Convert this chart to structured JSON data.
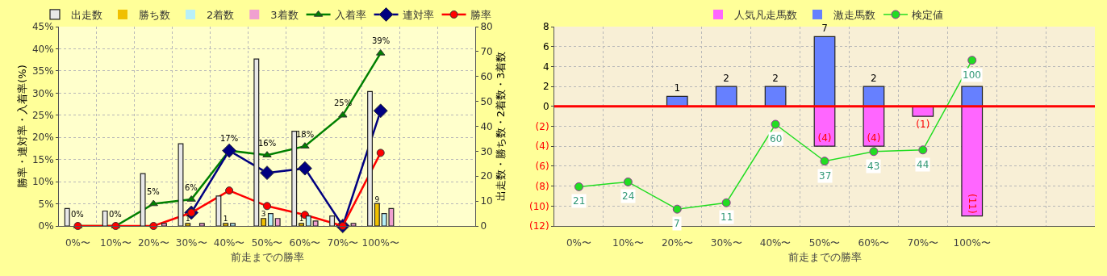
{
  "chart_data": [
    {
      "type": "bar",
      "xlabel": "前走までの勝率",
      "ylabel": "勝率・連対率・入着率(%)",
      "y2label": "出走数・勝ち数・2着数・3着数",
      "categories": [
        "0%〜",
        "10%〜",
        "20%〜",
        "30%〜",
        "40%〜",
        "50%〜",
        "60%〜",
        "70%〜",
        "100%〜",
        null,
        null
      ],
      "series": [
        {
          "name": "出走数",
          "axis": "y2",
          "color": "#e8e8e8",
          "values": [
            7,
            6,
            21,
            33,
            12,
            67,
            38,
            4,
            54,
            null,
            null
          ]
        },
        {
          "name": "勝ち数",
          "axis": "y2",
          "color": "#f0c000",
          "values": [
            0,
            0,
            0,
            1,
            1,
            3,
            1,
            0,
            9,
            null,
            null
          ],
          "value_labels": [
            null,
            null,
            null,
            "1",
            "1",
            "3",
            "1",
            null,
            "9",
            null,
            null
          ]
        },
        {
          "name": "2着数",
          "axis": "y2",
          "color": "#b8f0f8",
          "values": [
            0,
            0,
            0,
            0,
            1,
            5,
            4,
            0,
            5,
            null,
            null
          ]
        },
        {
          "name": "3着数",
          "axis": "y2",
          "color": "#f0a0d0",
          "values": [
            0,
            0,
            1,
            1,
            0,
            3,
            2,
            1,
            7,
            null,
            null
          ]
        },
        {
          "name": "入着率",
          "type": "line",
          "axis": "y",
          "marker": "triangle",
          "color": "#008000",
          "values": [
            0,
            0,
            5,
            6,
            17,
            16,
            18,
            25,
            39,
            null,
            null
          ],
          "value_labels": [
            "0%",
            "0%",
            "5%",
            "6%",
            "17%",
            "16%",
            "18%",
            "25%",
            "39%",
            null,
            null
          ]
        },
        {
          "name": "連対率",
          "type": "line",
          "axis": "y",
          "marker": "diamond",
          "color": "#000080",
          "values": [
            null,
            null,
            null,
            3,
            17,
            12,
            13,
            0,
            26,
            null,
            null
          ]
        },
        {
          "name": "勝率",
          "type": "line",
          "axis": "y",
          "marker": "circle",
          "color": "#ff0000",
          "values": [
            0,
            0,
            0,
            3,
            8,
            4.5,
            2.5,
            0,
            16.5,
            null,
            null
          ]
        }
      ],
      "ylim": [
        0,
        45
      ],
      "yticks": [
        {
          "value": 0,
          "label": "0%"
        },
        {
          "value": 5,
          "label": "5%"
        },
        {
          "value": 10,
          "label": "10%"
        },
        {
          "value": 15,
          "label": "15%"
        },
        {
          "value": 20,
          "label": "20%"
        },
        {
          "value": 25,
          "label": "25%"
        },
        {
          "value": 30,
          "label": "30%"
        },
        {
          "value": 35,
          "label": "35%"
        },
        {
          "value": 40,
          "label": "40%"
        },
        {
          "value": 45,
          "label": "45%"
        }
      ],
      "y2lim": [
        0,
        80
      ],
      "y2ticks": [
        0,
        10,
        20,
        30,
        40,
        50,
        60,
        70,
        80
      ],
      "grid": true,
      "legend": "top"
    },
    {
      "type": "bar",
      "xlabel": "前走までの勝率",
      "stacked": true,
      "categories": [
        "0%〜",
        "10%〜",
        "20%〜",
        "30%〜",
        "40%〜",
        "50%〜",
        "60%〜",
        "70%〜",
        "100%〜",
        null,
        null
      ],
      "series": [
        {
          "name": "人気凡走馬数",
          "color": "#ff66ff",
          "values": [
            null,
            null,
            null,
            null,
            null,
            -4,
            -4,
            -1,
            -11,
            null,
            null
          ],
          "value_labels": [
            null,
            null,
            null,
            null,
            null,
            "(4)",
            "(4)",
            "(1)",
            "(11)",
            null,
            null
          ]
        },
        {
          "name": "激走馬数",
          "color": "#6680ff",
          "values": [
            null,
            null,
            1,
            2,
            2,
            7,
            2,
            null,
            2,
            null,
            null
          ],
          "value_labels": [
            null,
            null,
            "1",
            "2",
            "2",
            "7",
            "2",
            null,
            null,
            null,
            null
          ]
        },
        {
          "name": "検定値",
          "type": "line",
          "axis": "y2",
          "marker": "circle",
          "color": "#22dd22",
          "values": [
            21,
            24,
            7,
            11,
            60,
            37,
            43,
            44,
            100,
            null,
            null
          ],
          "value_labels": [
            "21",
            "24",
            "7",
            "11",
            "60",
            "37",
            "43",
            "44",
            "100",
            null,
            null
          ]
        }
      ],
      "ylim": [
        -12,
        8
      ],
      "yticks": [
        {
          "value": -12,
          "label": "(12)"
        },
        {
          "value": -10,
          "label": "(10)"
        },
        {
          "value": -8,
          "label": "(8)"
        },
        {
          "value": -6,
          "label": "(6)"
        },
        {
          "value": -4,
          "label": "(4)"
        },
        {
          "value": -2,
          "label": "(2)"
        },
        0,
        2,
        4,
        6,
        8
      ],
      "y2lim": [
        -3.5,
        121
      ],
      "ref_lines": [
        {
          "axis": "y",
          "value": 0,
          "color": "#ff0000"
        }
      ],
      "grid": true,
      "legend": "top"
    }
  ]
}
